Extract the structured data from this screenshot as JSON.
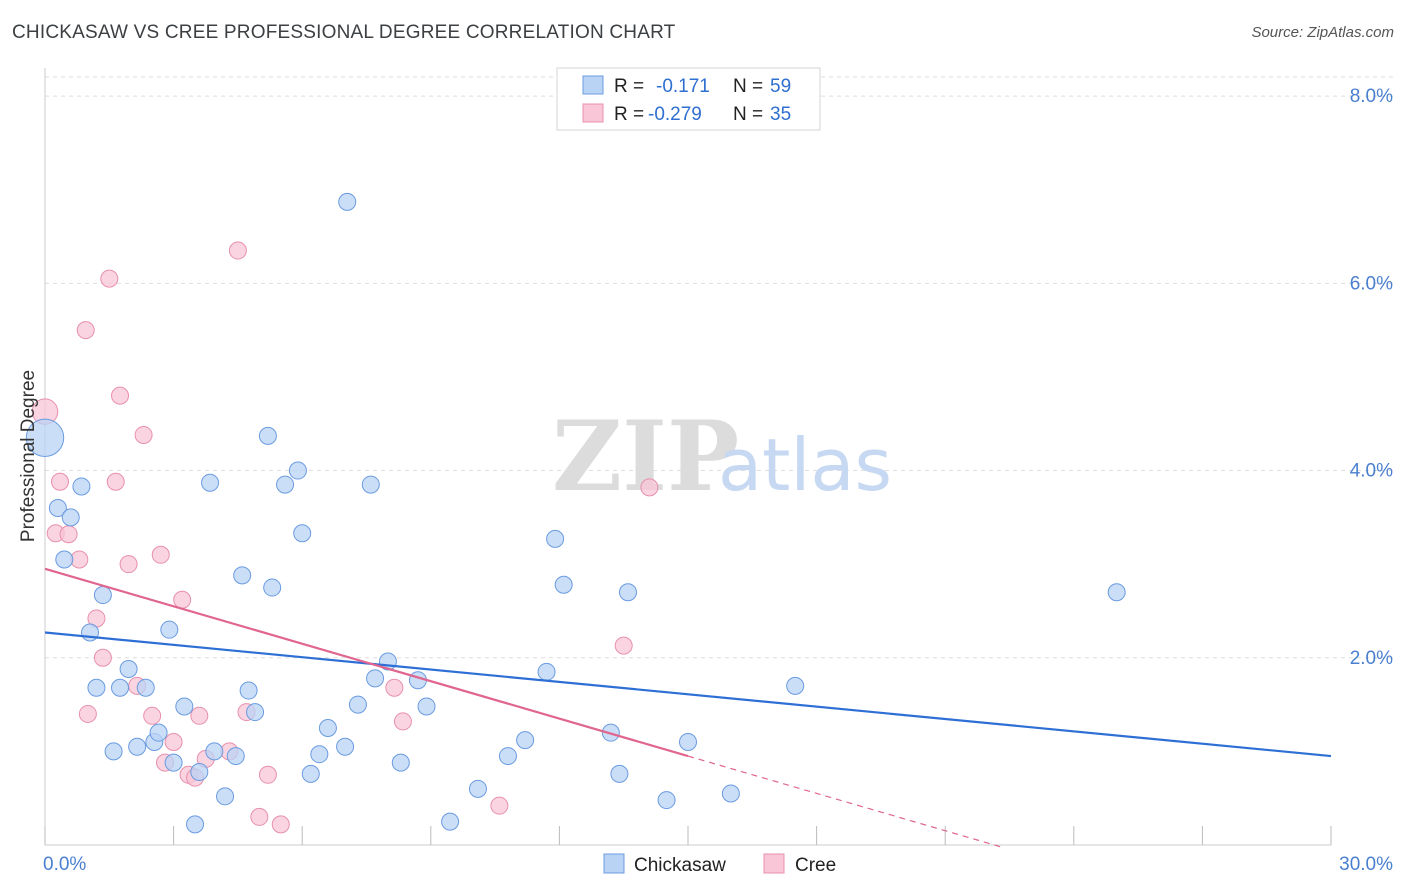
{
  "title": "CHICKASAW VS CREE PROFESSIONAL DEGREE CORRELATION CHART",
  "source": "Source: ZipAtlas.com",
  "watermark": {
    "zip": "ZIP",
    "atlas": "atlas"
  },
  "colors": {
    "chickasaw_fill": "#b9d3f5",
    "chickasaw_stroke": "#6a9be0",
    "chickasaw_line": "#2e6fd6",
    "cree_fill": "#f8c6d6",
    "cree_stroke": "#e890ad",
    "cree_line": "#e0668f",
    "tick": "#4a7fd0",
    "grid": "#dddddd"
  },
  "chart_data": {
    "type": "scatter",
    "title": "CHICKASAW VS CREE PROFESSIONAL DEGREE CORRELATION CHART",
    "xlabel": "",
    "ylabel": "Professional Degree",
    "xlim": [
      0,
      30
    ],
    "ylim": [
      0,
      8.3
    ],
    "x_tick_labels": [
      "0.0%",
      "30.0%"
    ],
    "y_ticks": [
      2,
      4,
      6,
      8
    ],
    "y_tick_labels": [
      "2.0%",
      "4.0%",
      "6.0%",
      "8.0%"
    ],
    "legend": [
      {
        "name": "Chickasaw",
        "r_label": "R =",
        "r": "-0.171",
        "n_label": "N =",
        "n": "59"
      },
      {
        "name": "Cree",
        "r_label": "R =",
        "r": "-0.279",
        "n_label": "N =",
        "n": "35"
      }
    ],
    "series": [
      {
        "name": "Chickasaw",
        "trend": {
          "x0": 0,
          "y0": 2.27,
          "x1": 30,
          "y1": 0.95
        },
        "points": [
          [
            0.0,
            4.35,
            2.2
          ],
          [
            0.3,
            3.6,
            1
          ],
          [
            0.45,
            3.05,
            1
          ],
          [
            0.6,
            3.5,
            1
          ],
          [
            0.85,
            3.83,
            1
          ],
          [
            1.05,
            2.27,
            1
          ],
          [
            1.2,
            1.68,
            1
          ],
          [
            1.35,
            2.67,
            1
          ],
          [
            1.6,
            1.0,
            1
          ],
          [
            1.75,
            1.68,
            1
          ],
          [
            1.95,
            1.88,
            1
          ],
          [
            2.15,
            1.05,
            1
          ],
          [
            2.35,
            1.68,
            1
          ],
          [
            2.55,
            1.1,
            1
          ],
          [
            2.65,
            1.2,
            1
          ],
          [
            2.9,
            2.3,
            1
          ],
          [
            3.0,
            0.88,
            1
          ],
          [
            3.25,
            1.48,
            1
          ],
          [
            3.5,
            0.22,
            1
          ],
          [
            3.6,
            0.78,
            1
          ],
          [
            3.85,
            3.87,
            1
          ],
          [
            3.95,
            1.0,
            1
          ],
          [
            4.2,
            0.52,
            1
          ],
          [
            4.45,
            0.95,
            1
          ],
          [
            4.6,
            2.88,
            1
          ],
          [
            4.75,
            1.65,
            1
          ],
          [
            4.9,
            1.42,
            1
          ],
          [
            5.2,
            4.37,
            1
          ],
          [
            5.3,
            2.75,
            1
          ],
          [
            5.6,
            3.85,
            1
          ],
          [
            5.9,
            4.0,
            1
          ],
          [
            6.0,
            3.33,
            1
          ],
          [
            6.2,
            0.76,
            1
          ],
          [
            6.4,
            0.97,
            1
          ],
          [
            6.6,
            1.25,
            1
          ],
          [
            7.0,
            1.05,
            1
          ],
          [
            7.05,
            6.87,
            1
          ],
          [
            7.3,
            1.5,
            1
          ],
          [
            7.6,
            3.85,
            1
          ],
          [
            7.7,
            1.78,
            1
          ],
          [
            8.0,
            1.96,
            1
          ],
          [
            8.3,
            0.88,
            1
          ],
          [
            8.7,
            1.76,
            1
          ],
          [
            8.9,
            1.48,
            1
          ],
          [
            9.45,
            0.25,
            1
          ],
          [
            10.1,
            0.6,
            1
          ],
          [
            10.8,
            0.95,
            1
          ],
          [
            11.2,
            1.12,
            1
          ],
          [
            11.7,
            1.85,
            1
          ],
          [
            11.9,
            3.27,
            1
          ],
          [
            12.1,
            2.78,
            1
          ],
          [
            13.2,
            1.2,
            1
          ],
          [
            13.4,
            0.76,
            1
          ],
          [
            13.6,
            2.7,
            1
          ],
          [
            14.5,
            0.48,
            1
          ],
          [
            15.0,
            1.1,
            1
          ],
          [
            16.0,
            0.55,
            1
          ],
          [
            17.5,
            1.7,
            1
          ],
          [
            25.0,
            2.7,
            1
          ]
        ]
      },
      {
        "name": "Cree",
        "trend": {
          "x0": 0,
          "y0": 2.95,
          "x1": 15.0,
          "y1": 0.95,
          "dash_x1": 22.3,
          "dash_y1": -0.02
        },
        "points": [
          [
            0.0,
            4.63,
            1.5
          ],
          [
            0.25,
            3.33,
            1
          ],
          [
            0.35,
            3.88,
            1
          ],
          [
            0.55,
            3.32,
            1
          ],
          [
            0.8,
            3.05,
            1
          ],
          [
            0.95,
            5.5,
            1
          ],
          [
            1.0,
            1.4,
            1
          ],
          [
            1.2,
            2.42,
            1
          ],
          [
            1.35,
            2.0,
            1
          ],
          [
            1.5,
            6.05,
            1
          ],
          [
            1.65,
            3.88,
            1
          ],
          [
            1.75,
            4.8,
            1
          ],
          [
            1.95,
            3.0,
            1
          ],
          [
            2.15,
            1.7,
            1
          ],
          [
            2.3,
            4.38,
            1
          ],
          [
            2.5,
            1.38,
            1
          ],
          [
            2.7,
            3.1,
            1
          ],
          [
            2.8,
            0.88,
            1
          ],
          [
            3.0,
            1.1,
            1
          ],
          [
            3.2,
            2.62,
            1
          ],
          [
            3.35,
            0.75,
            1
          ],
          [
            3.5,
            0.72,
            1
          ],
          [
            3.6,
            1.38,
            1
          ],
          [
            3.75,
            0.92,
            1
          ],
          [
            4.5,
            6.35,
            1
          ],
          [
            4.7,
            1.42,
            1
          ],
          [
            5.0,
            0.3,
            1
          ],
          [
            5.2,
            0.75,
            1
          ],
          [
            5.5,
            0.22,
            1
          ],
          [
            8.15,
            1.68,
            1
          ],
          [
            8.35,
            1.32,
            1
          ],
          [
            10.6,
            0.42,
            1
          ],
          [
            13.5,
            2.13,
            1
          ],
          [
            14.1,
            3.82,
            1
          ],
          [
            4.3,
            1.0,
            1
          ]
        ]
      }
    ]
  }
}
